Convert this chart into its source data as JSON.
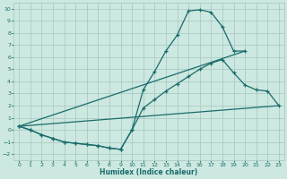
{
  "xlabel": "Humidex (Indice chaleur)",
  "xlim": [
    -0.5,
    23.5
  ],
  "ylim": [
    -2.5,
    10.5
  ],
  "xticks": [
    0,
    1,
    2,
    3,
    4,
    5,
    6,
    7,
    8,
    9,
    10,
    11,
    12,
    13,
    14,
    15,
    16,
    17,
    18,
    19,
    20,
    21,
    22,
    23
  ],
  "yticks": [
    -2,
    -1,
    0,
    1,
    2,
    3,
    4,
    5,
    6,
    7,
    8,
    9,
    10
  ],
  "bg_color": "#cce8e0",
  "grid_color": "#aaccc4",
  "line_color": "#1a6b6b",
  "curve1_x": [
    0,
    1,
    2,
    3,
    4,
    5,
    6,
    7,
    8,
    9,
    10,
    11,
    12,
    13,
    14,
    15,
    16,
    17,
    18,
    19,
    20
  ],
  "curve1_y": [
    0.3,
    0.0,
    -0.4,
    -0.7,
    -1.0,
    -1.1,
    -1.2,
    -1.3,
    -1.5,
    -1.6,
    0.0,
    3.3,
    4.8,
    6.5,
    7.8,
    9.8,
    9.9,
    9.7,
    8.5,
    6.5,
    6.5
  ],
  "curve2_x": [
    0,
    1,
    2,
    3,
    4,
    5,
    6,
    7,
    8,
    9,
    10,
    11,
    12,
    13,
    14,
    15,
    16,
    17,
    18,
    19,
    20,
    21,
    22,
    23
  ],
  "curve2_y": [
    0.3,
    0.0,
    -0.4,
    -0.7,
    -1.0,
    -1.1,
    -1.2,
    -1.3,
    -1.5,
    -1.6,
    0.0,
    1.8,
    2.5,
    3.2,
    3.8,
    4.4,
    5.0,
    5.5,
    5.8,
    4.7,
    3.7,
    3.3,
    3.2,
    2.0
  ],
  "line1_x": [
    0,
    20
  ],
  "line1_y": [
    0.3,
    6.5
  ],
  "line2_x": [
    0,
    23
  ],
  "line2_y": [
    0.3,
    2.0
  ]
}
